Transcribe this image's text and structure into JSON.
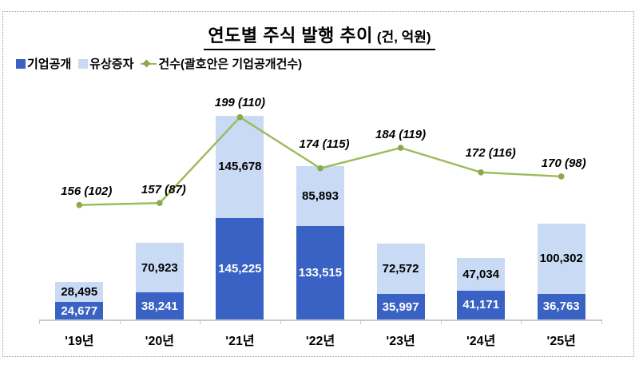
{
  "title": {
    "main": "연도별 주식 발행 추이",
    "unit": "(건, 억원)"
  },
  "legend": [
    {
      "label": "기업공개",
      "type": "square",
      "color": "#3a62c4"
    },
    {
      "label": "유상증자",
      "type": "square",
      "color": "#c9daf5"
    },
    {
      "label": "건수(괄호안은 기업공개건수)",
      "type": "line",
      "color": "#9bbb59"
    }
  ],
  "colors": {
    "ipo_bar": "#3a62c4",
    "rights_bar": "#c9daf5",
    "count_line": "#9bbb59",
    "count_marker": "#8aaa4c",
    "ipo_label": "#ffffff",
    "rights_label": "#000000",
    "axis": "#c9c9c9",
    "border_dotted": "#9b9b9b"
  },
  "chart_data": {
    "type": "bar+line",
    "title": "연도별 주식 발행 추이 (건, 억원)",
    "categories": [
      "'19년",
      "'20년",
      "'21년",
      "'22년",
      "'23년",
      "'24년",
      "'25년"
    ],
    "series": [
      {
        "name": "기업공개",
        "type": "bar",
        "stack": "amount",
        "axis": "y1",
        "values": [
          24677,
          38241,
          145225,
          133515,
          35997,
          41171,
          36763
        ],
        "labels": [
          "24,677",
          "38,241",
          "145,225",
          "133,515",
          "35,997",
          "41,171",
          "36,763"
        ]
      },
      {
        "name": "유상증자",
        "type": "bar",
        "stack": "amount",
        "axis": "y1",
        "values": [
          28495,
          70923,
          145678,
          85893,
          72572,
          47034,
          100302
        ],
        "labels": [
          "28,495",
          "70,923",
          "145,678",
          "85,893",
          "72,572",
          "47,034",
          "100,302"
        ]
      },
      {
        "name": "건수(괄호안은 기업공개건수)",
        "type": "line",
        "axis": "y2",
        "values": [
          156,
          157,
          199,
          174,
          184,
          172,
          170
        ],
        "labels": [
          "156 (102)",
          "157 (87)",
          "199 (110)",
          "174 (115)",
          "184 (119)",
          "172 (116)",
          "170 (98)"
        ]
      }
    ],
    "y1_range": [
      0,
      350000
    ],
    "y2_range": [
      100,
      220
    ],
    "grid": false,
    "legend_position": "top-left",
    "xlabel": "",
    "ylabel": ""
  }
}
